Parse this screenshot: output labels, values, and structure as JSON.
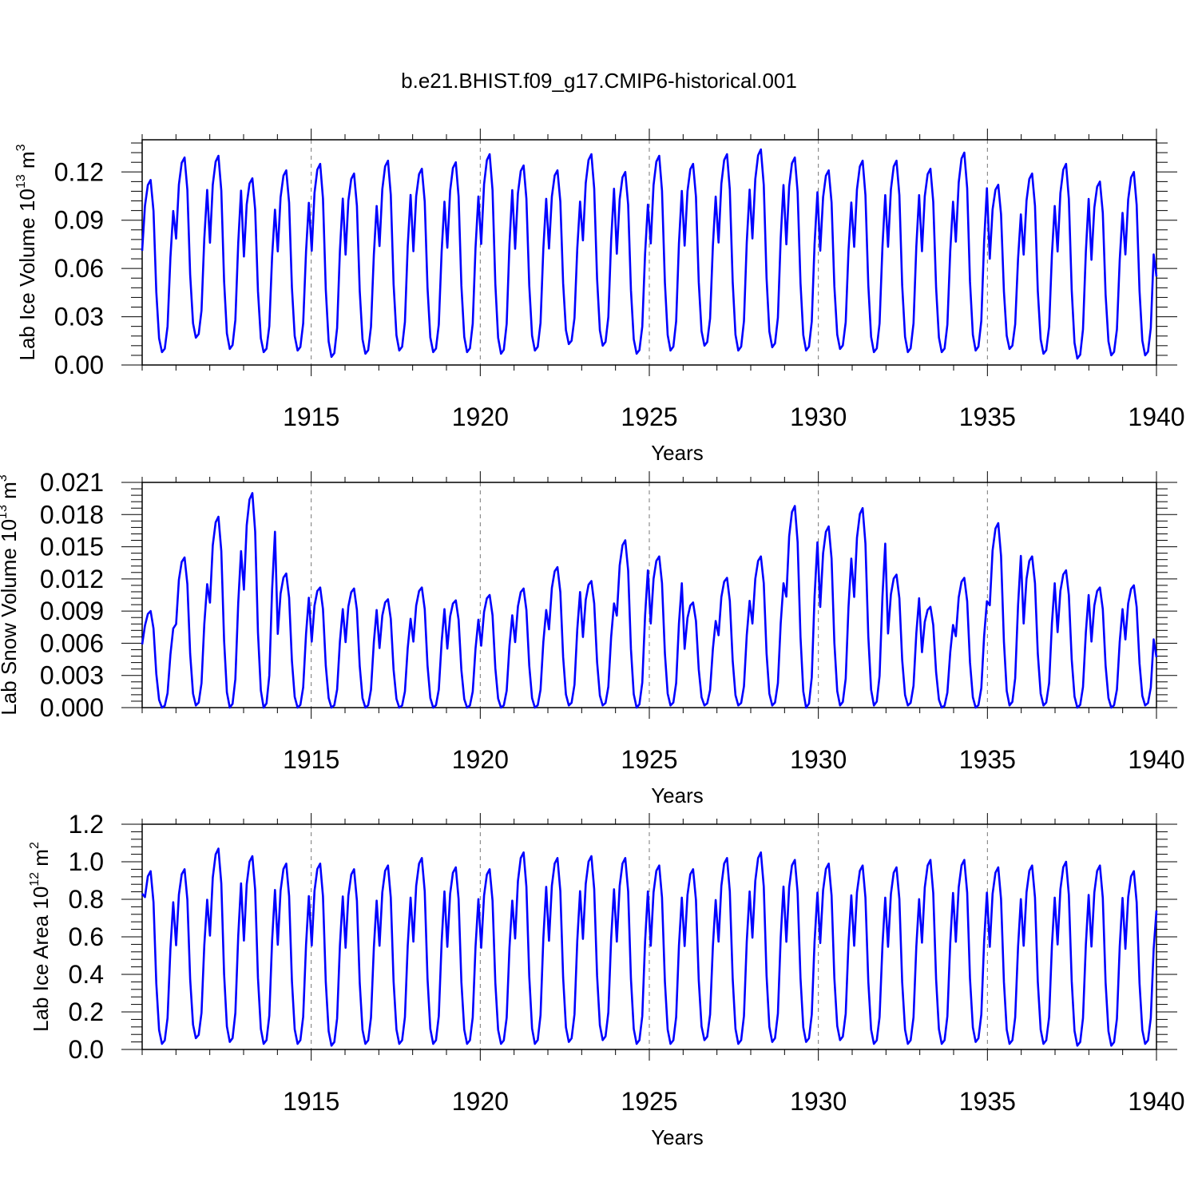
{
  "figure": {
    "title": "b.e21.BHIST.f09_g17.CMIP6-historical.001"
  },
  "chart_data": [
    {
      "type": "line",
      "title": "",
      "xlabel": "Years",
      "ylabel": {
        "prefix": "Lab Ice Volume 10",
        "exp": "13",
        "unit": " m",
        "unit_exp": "3"
      },
      "xlim": [
        1910.0,
        1940.0
      ],
      "ylim": [
        0.0,
        0.14
      ],
      "xticks": [
        1915,
        1920,
        1925,
        1930,
        1935,
        1940
      ],
      "xtick_labels": [
        "1915",
        "1920",
        "1925",
        "1930",
        "1935",
        "1940"
      ],
      "yticks": [
        0.0,
        0.03,
        0.06,
        0.09,
        0.12
      ],
      "ytick_labels": [
        "0.00",
        "0.03",
        "0.06",
        "0.09",
        "0.12"
      ],
      "grid": "dashed vertical lines at 5-year ticks",
      "series": [
        {
          "color": "#0000ff",
          "pattern": "monthly",
          "start_value": 0.071,
          "end_value": 0.055,
          "annual_max": [
            0.115,
            0.129,
            0.13,
            0.116,
            0.121,
            0.125,
            0.119,
            0.127,
            0.122,
            0.126,
            0.131,
            0.124,
            0.121,
            0.131,
            0.12,
            0.13,
            0.125,
            0.131,
            0.134,
            0.129,
            0.121,
            0.127,
            0.127,
            0.122,
            0.132,
            0.112,
            0.119,
            0.125,
            0.114,
            0.12
          ],
          "annual_min": [
            0.008,
            0.017,
            0.01,
            0.008,
            0.009,
            0.005,
            0.007,
            0.009,
            0.008,
            0.008,
            0.007,
            0.009,
            0.013,
            0.012,
            0.007,
            0.009,
            0.012,
            0.009,
            0.011,
            0.009,
            0.01,
            0.008,
            0.008,
            0.008,
            0.009,
            0.01,
            0.007,
            0.004,
            0.006,
            0.006
          ]
        }
      ]
    },
    {
      "type": "line",
      "title": "",
      "xlabel": "Years",
      "ylabel": {
        "prefix": "Lab Snow Volume 10",
        "exp": "13",
        "unit": " m",
        "unit_exp": "3"
      },
      "xlim": [
        1910.0,
        1940.0
      ],
      "ylim": [
        0.0,
        0.021
      ],
      "xticks": [
        1915,
        1920,
        1925,
        1930,
        1935,
        1940
      ],
      "xtick_labels": [
        "1915",
        "1920",
        "1925",
        "1930",
        "1935",
        "1940"
      ],
      "yticks": [
        0.0,
        0.003,
        0.006,
        0.009,
        0.012,
        0.015,
        0.018,
        0.021
      ],
      "ytick_labels": [
        "0.000",
        "0.003",
        "0.006",
        "0.009",
        "0.012",
        "0.015",
        "0.018",
        "0.021"
      ],
      "grid": "dashed vertical lines at 5-year ticks",
      "series": [
        {
          "color": "#0000ff",
          "pattern": "monthly",
          "start_value": 0.0059,
          "end_value": 0.0047,
          "annual_max": [
            0.009,
            0.014,
            0.0178,
            0.02,
            0.0125,
            0.0112,
            0.0111,
            0.0101,
            0.0112,
            0.01,
            0.0105,
            0.0111,
            0.0131,
            0.0118,
            0.0156,
            0.0141,
            0.0098,
            0.0121,
            0.0141,
            0.0188,
            0.0169,
            0.0186,
            0.0124,
            0.0094,
            0.0121,
            0.0172,
            0.0141,
            0.0128,
            0.0112,
            0.0114
          ],
          "annual_min": [
            0.0,
            0.0002,
            0.0,
            0.0,
            0.0,
            0.0,
            0.0,
            0.0,
            0.0,
            0.0,
            0.0,
            0.0,
            0.0002,
            0.0002,
            0.0,
            0.0002,
            0.0002,
            0.0002,
            0.0002,
            0.0,
            0.0002,
            0.0002,
            0.0002,
            0.0,
            0.0,
            0.0002,
            0.0002,
            0.0,
            0.0,
            0.0002
          ]
        }
      ]
    },
    {
      "type": "line",
      "title": "",
      "xlabel": "Years",
      "ylabel": {
        "prefix": "Lab Ice Area 10",
        "exp": "12",
        "unit": " m",
        "unit_exp": "2"
      },
      "xlim": [
        1910.0,
        1940.0
      ],
      "ylim": [
        0.0,
        1.2
      ],
      "xticks": [
        1915,
        1920,
        1925,
        1930,
        1935,
        1940
      ],
      "xtick_labels": [
        "1915",
        "1920",
        "1925",
        "1930",
        "1935",
        "1940"
      ],
      "yticks": [
        0.0,
        0.2,
        0.4,
        0.6,
        0.8,
        1.0,
        1.2
      ],
      "ytick_labels": [
        "0.0",
        "0.2",
        "0.4",
        "0.6",
        "0.8",
        "1.0",
        "1.2"
      ],
      "grid": "dashed vertical lines at 5-year ticks",
      "series": [
        {
          "color": "#0000ff",
          "pattern": "monthly",
          "start_value": 0.83,
          "end_value": 0.74,
          "annual_max": [
            0.95,
            0.96,
            1.07,
            1.03,
            0.99,
            0.99,
            0.96,
            0.98,
            1.02,
            0.97,
            0.96,
            1.05,
            1.02,
            1.03,
            1.02,
            0.98,
            0.96,
            1.02,
            1.05,
            1.01,
            0.99,
            0.98,
            0.97,
            1.01,
            1.01,
            0.97,
            0.98,
            1.0,
            0.98,
            0.95
          ],
          "annual_min": [
            0.03,
            0.06,
            0.04,
            0.03,
            0.03,
            0.02,
            0.03,
            0.03,
            0.03,
            0.03,
            0.03,
            0.03,
            0.04,
            0.05,
            0.03,
            0.03,
            0.05,
            0.03,
            0.04,
            0.04,
            0.05,
            0.03,
            0.03,
            0.03,
            0.04,
            0.03,
            0.03,
            0.02,
            0.02,
            0.03
          ]
        }
      ]
    }
  ]
}
